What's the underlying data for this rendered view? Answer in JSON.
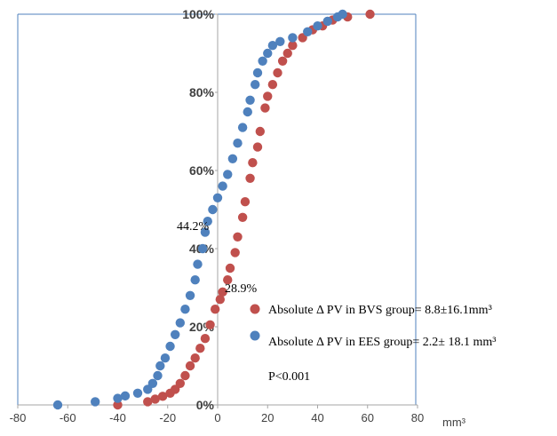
{
  "chart_data": {
    "type": "scatter",
    "title": "",
    "xlabel": "mm³",
    "ylabel": "",
    "xlim": [
      -80,
      80
    ],
    "ylim": [
      0,
      100
    ],
    "x_ticks": [
      "-80",
      "-60",
      "-40",
      "-20",
      "0",
      "20",
      "40",
      "60",
      "80"
    ],
    "y_ticks": [
      "0%",
      "20%",
      "40%",
      "60%",
      "80%",
      "100%"
    ],
    "grid": false,
    "legend_position": "right",
    "colors": {
      "BVS": "#c0504d",
      "EES": "#4f81bd",
      "frame": "#4f81bd"
    },
    "annotations": [
      {
        "text": "44.2%",
        "x": -11,
        "y": 44.2
      },
      {
        "text": "28.9%",
        "x": 3,
        "y": 28.9
      }
    ],
    "series": [
      {
        "name": "Absolute Δ PV in BVS group= 8.8±16.1mm³",
        "color": "#c0504d",
        "points": [
          [
            -40,
            0
          ],
          [
            -28,
            0.8
          ],
          [
            -25,
            1.5
          ],
          [
            -22,
            2.2
          ],
          [
            -19,
            3.0
          ],
          [
            -17,
            4.0
          ],
          [
            -15,
            5.5
          ],
          [
            -13,
            7.5
          ],
          [
            -11,
            10
          ],
          [
            -9,
            12
          ],
          [
            -7,
            14.5
          ],
          [
            -5,
            17
          ],
          [
            -3,
            20.5
          ],
          [
            -1,
            24.5
          ],
          [
            1,
            27
          ],
          [
            2,
            28.9
          ],
          [
            4,
            32
          ],
          [
            5,
            35
          ],
          [
            7,
            39
          ],
          [
            8,
            43
          ],
          [
            10,
            48
          ],
          [
            11,
            52
          ],
          [
            13,
            58
          ],
          [
            14,
            62
          ],
          [
            16,
            66
          ],
          [
            17,
            70
          ],
          [
            19,
            76
          ],
          [
            20,
            79
          ],
          [
            22,
            82
          ],
          [
            24,
            85
          ],
          [
            26,
            88
          ],
          [
            28,
            90
          ],
          [
            30,
            92
          ],
          [
            34,
            94
          ],
          [
            38,
            96
          ],
          [
            42,
            97
          ],
          [
            46,
            98.5
          ],
          [
            52,
            99.3
          ],
          [
            61,
            100
          ]
        ]
      },
      {
        "name": "Absolute Δ PV in EES group= 2.2± 18.1 mm³",
        "color": "#4f81bd",
        "points": [
          [
            -64,
            0
          ],
          [
            -49,
            0.8
          ],
          [
            -40,
            1.7
          ],
          [
            -37,
            2.3
          ],
          [
            -32,
            3.0
          ],
          [
            -28,
            4.0
          ],
          [
            -26,
            5.5
          ],
          [
            -24,
            7.5
          ],
          [
            -23,
            10
          ],
          [
            -21,
            12
          ],
          [
            -19,
            15
          ],
          [
            -17,
            18
          ],
          [
            -15,
            21
          ],
          [
            -13,
            24.5
          ],
          [
            -11,
            28
          ],
          [
            -9,
            32
          ],
          [
            -8,
            36
          ],
          [
            -6,
            40
          ],
          [
            -5,
            44.2
          ],
          [
            -4,
            47
          ],
          [
            -2,
            50
          ],
          [
            0,
            53
          ],
          [
            2,
            56
          ],
          [
            4,
            59
          ],
          [
            6,
            63
          ],
          [
            8,
            67
          ],
          [
            10,
            71
          ],
          [
            12,
            75
          ],
          [
            13,
            78
          ],
          [
            15,
            82
          ],
          [
            16,
            85
          ],
          [
            18,
            88
          ],
          [
            20,
            90
          ],
          [
            22,
            92
          ],
          [
            25,
            93
          ],
          [
            30,
            94
          ],
          [
            36,
            95.5
          ],
          [
            40,
            97
          ],
          [
            44,
            98.2
          ],
          [
            48,
            99.3
          ],
          [
            50,
            100
          ]
        ]
      }
    ],
    "stats_text": "P<0.001"
  }
}
